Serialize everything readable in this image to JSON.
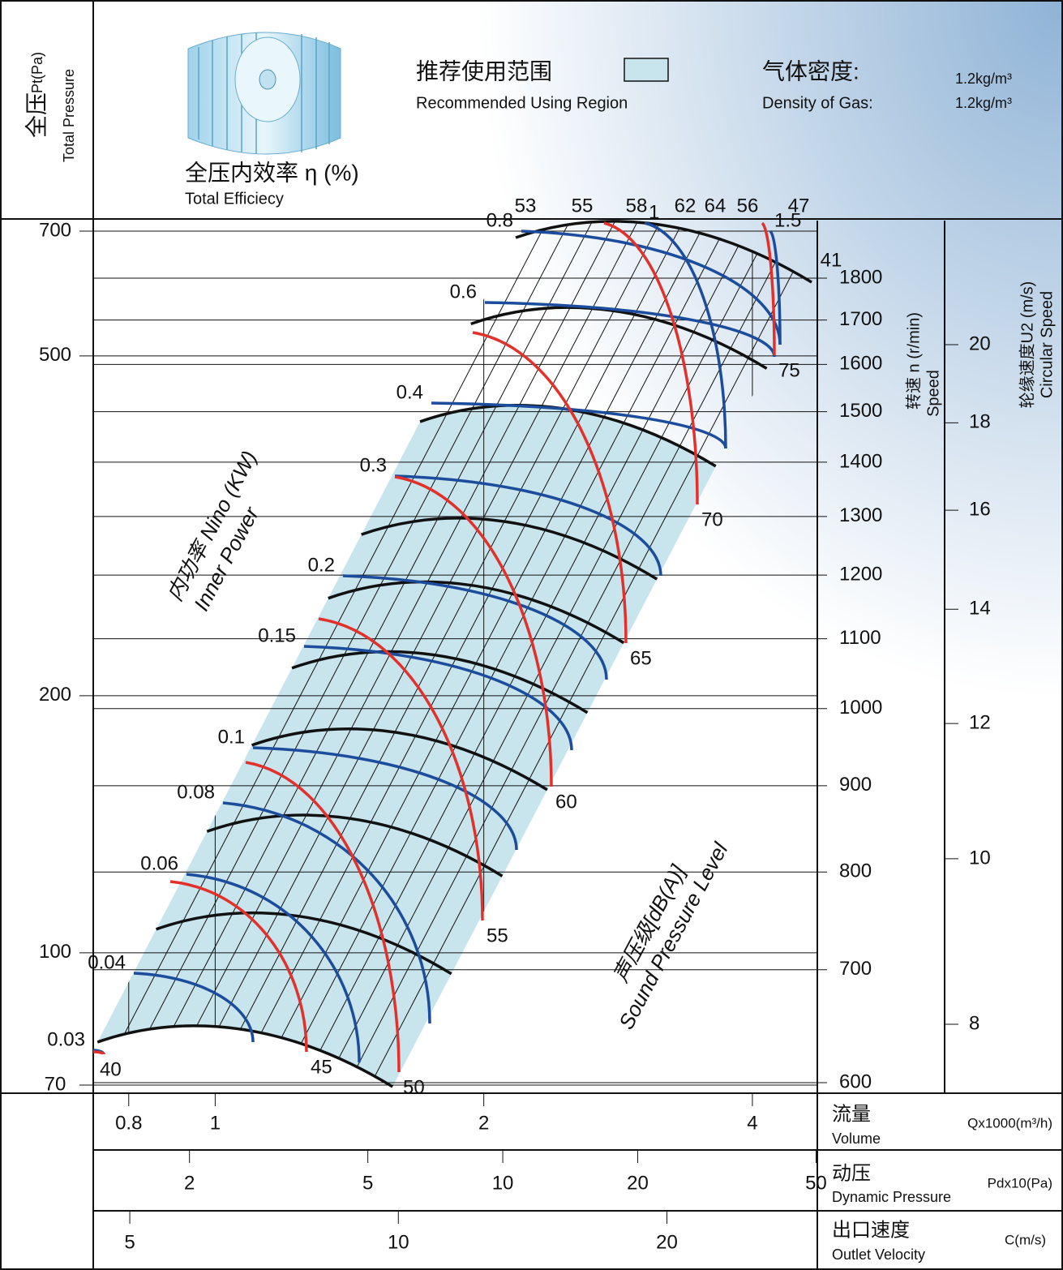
{
  "header": {
    "y_title_cn": "全压",
    "y_title_unit": "Pt(Pa)",
    "y_title_en": "Total Pressure",
    "efficiency_title_cn": "全压内效率 η (%)",
    "efficiency_title_en": "Total Efficiecy",
    "region_cn": "推荐使用范围",
    "region_en": "Recommended Using Region",
    "density_cn": "气体密度:",
    "density_en": "Density of Gas:",
    "density_value_1": "1.2kg/m³",
    "density_value_2": "1.2kg/m³"
  },
  "chart_data": {
    "type": "fan-curve",
    "log_scale": true,
    "ylim": [
      70,
      700
    ],
    "yticks": [
      70,
      100,
      200,
      500,
      700
    ],
    "speed_axis": {
      "title_cn": "转速 n (r/min)",
      "title_en": "Speed",
      "lim": [
        600,
        1800
      ],
      "ticks": [
        600,
        700,
        800,
        900,
        1000,
        1100,
        1200,
        1300,
        1400,
        1500,
        1600,
        1700,
        1800
      ]
    },
    "circular_speed_axis": {
      "title_cn": "轮缘速度U2 (m/s)",
      "title_en": "Circular Speed",
      "lim": [
        8,
        20
      ],
      "ticks": [
        8,
        10,
        12,
        14,
        16,
        18,
        20
      ]
    },
    "volume_axis": {
      "title_cn": "流量",
      "title_en": "Volume",
      "unit": "Qx1000(m³/h)",
      "lim": [
        0.73,
        4.7
      ],
      "ticks": [
        0.8,
        1,
        2,
        4
      ]
    },
    "dynamic_pressure_axis": {
      "title_cn": "动压",
      "title_en": "Dynamic Pressure",
      "unit": "Pdx10(Pa)",
      "lim": [
        1.22,
        49.7
      ],
      "ticks": [
        2,
        5,
        10,
        20,
        50
      ]
    },
    "velocity_axis": {
      "title_cn": "出口速度",
      "title_en": "Outlet Velocity",
      "unit": "C(m/s)",
      "lim": [
        4.55,
        29.3
      ],
      "ticks": [
        5,
        10,
        20
      ]
    },
    "speed_curves": [
      600,
      700,
      800,
      900,
      1000,
      1100,
      1200,
      1400,
      1600,
      1800
    ],
    "efficiency_labels": [
      53,
      55,
      58,
      62,
      64,
      56,
      47,
      41
    ],
    "power": {
      "title_cn": "内功率 Nino (KW)",
      "title_en": "Inner Power",
      "values": [
        0.03,
        0.04,
        0.06,
        0.08,
        0.1,
        0.15,
        0.2,
        0.3,
        0.4,
        0.6,
        0.8,
        1,
        1.5
      ]
    },
    "noise": {
      "title_cn": "声压级[dB(A)]",
      "title_en": "Sound Pressure Level",
      "values": [
        40,
        45,
        50,
        55,
        60,
        65,
        70,
        75
      ]
    },
    "colors": {
      "power": "#1c4c9c",
      "noise": "#e2312b",
      "speed": "#111111",
      "region": "#c8e4ec"
    }
  }
}
